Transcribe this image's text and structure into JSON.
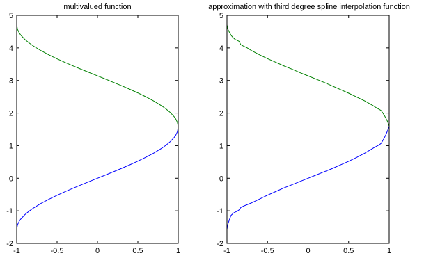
{
  "chart_data": [
    {
      "type": "line",
      "title": "multivalued function",
      "xlabel": "",
      "ylabel": "",
      "xlim": [
        -1,
        1
      ],
      "ylim": [
        -2,
        5
      ],
      "xticks": [
        -1,
        -0.5,
        0,
        0.5,
        1
      ],
      "xtick_labels": [
        "-1",
        "-0.5",
        "0",
        "0.5",
        "1"
      ],
      "yticks": [
        -2,
        -1,
        0,
        1,
        2,
        3,
        4,
        5
      ],
      "ytick_labels": [
        "-2",
        "-1",
        "0",
        "1",
        "2",
        "3",
        "4",
        "5"
      ],
      "grid": false,
      "series": [
        {
          "color": "#0000ff",
          "x": [
            -1.0,
            -0.99,
            -0.97,
            -0.95,
            -0.9,
            -0.85,
            -0.8,
            -0.7,
            -0.6,
            -0.5,
            -0.4,
            -0.3,
            -0.2,
            -0.1,
            0.0,
            0.1,
            0.2,
            0.3,
            0.4,
            0.5,
            0.6,
            0.7,
            0.8,
            0.85,
            0.9,
            0.95,
            0.97,
            0.99,
            1.0
          ],
          "y": [
            -1.571,
            -1.429,
            -1.325,
            -1.253,
            -1.12,
            -1.017,
            -0.927,
            -0.775,
            -0.644,
            -0.524,
            -0.412,
            -0.305,
            -0.201,
            -0.1,
            0.0,
            0.1,
            0.201,
            0.305,
            0.412,
            0.524,
            0.644,
            0.775,
            0.927,
            1.017,
            1.12,
            1.253,
            1.325,
            1.429,
            1.571
          ]
        },
        {
          "color": "#008000",
          "x": [
            -1.0,
            -0.99,
            -0.97,
            -0.95,
            -0.9,
            -0.85,
            -0.8,
            -0.7,
            -0.6,
            -0.5,
            -0.4,
            -0.3,
            -0.2,
            -0.1,
            0.0,
            0.1,
            0.2,
            0.3,
            0.4,
            0.5,
            0.6,
            0.7,
            0.8,
            0.85,
            0.9,
            0.95,
            0.97,
            0.99,
            1.0
          ],
          "y": [
            4.712,
            4.57,
            4.467,
            4.394,
            4.261,
            4.159,
            4.069,
            3.917,
            3.785,
            3.665,
            3.553,
            3.446,
            3.343,
            3.242,
            3.142,
            3.042,
            2.94,
            2.837,
            2.73,
            2.618,
            2.498,
            2.366,
            2.214,
            2.124,
            2.021,
            1.888,
            1.817,
            1.713,
            1.571
          ]
        }
      ]
    },
    {
      "type": "line",
      "title": "approximation with third degree spline interpolation function",
      "xlabel": "",
      "ylabel": "",
      "xlim": [
        -1,
        1
      ],
      "ylim": [
        -2,
        5
      ],
      "xticks": [
        -1,
        -0.5,
        0,
        0.5,
        1
      ],
      "xtick_labels": [
        "-1",
        "-0.5",
        "0",
        "0.5",
        "1"
      ],
      "yticks": [
        -2,
        -1,
        0,
        1,
        2,
        3,
        4,
        5
      ],
      "ytick_labels": [
        "-2",
        "-1",
        "0",
        "1",
        "2",
        "3",
        "4",
        "5"
      ],
      "grid": false,
      "series": [
        {
          "color": "#0000ff",
          "x": [
            -1.0,
            -0.99,
            -0.97,
            -0.95,
            -0.92,
            -0.9,
            -0.88,
            -0.85,
            -0.83,
            -0.8,
            -0.75,
            -0.7,
            -0.6,
            -0.5,
            -0.4,
            -0.3,
            -0.2,
            -0.1,
            0.0,
            0.1,
            0.2,
            0.3,
            0.4,
            0.5,
            0.6,
            0.7,
            0.8,
            0.85,
            0.88,
            0.9,
            0.92,
            0.94,
            0.96,
            0.98,
            1.0
          ],
          "y": [
            -1.57,
            -1.42,
            -1.27,
            -1.14,
            -1.07,
            -1.04,
            -1.02,
            -0.97,
            -0.9,
            -0.86,
            -0.81,
            -0.76,
            -0.64,
            -0.52,
            -0.41,
            -0.3,
            -0.2,
            -0.1,
            0.0,
            0.1,
            0.2,
            0.3,
            0.41,
            0.52,
            0.64,
            0.77,
            0.92,
            0.99,
            1.03,
            1.07,
            1.15,
            1.24,
            1.34,
            1.46,
            1.6
          ]
        },
        {
          "color": "#008000",
          "x": [
            -1.0,
            -0.99,
            -0.97,
            -0.95,
            -0.93,
            -0.9,
            -0.88,
            -0.85,
            -0.83,
            -0.8,
            -0.75,
            -0.7,
            -0.6,
            -0.5,
            -0.4,
            -0.3,
            -0.2,
            -0.1,
            0.0,
            0.1,
            0.2,
            0.3,
            0.4,
            0.5,
            0.6,
            0.7,
            0.8,
            0.85,
            0.88,
            0.9,
            0.92,
            0.94,
            0.96,
            0.98,
            1.0
          ],
          "y": [
            4.71,
            4.58,
            4.48,
            4.39,
            4.33,
            4.26,
            4.24,
            4.2,
            4.1,
            4.06,
            4.0,
            3.92,
            3.79,
            3.67,
            3.56,
            3.45,
            3.35,
            3.24,
            3.14,
            3.04,
            2.94,
            2.83,
            2.72,
            2.61,
            2.49,
            2.37,
            2.23,
            2.15,
            2.11,
            2.08,
            2.01,
            1.93,
            1.84,
            1.74,
            1.6
          ]
        }
      ]
    }
  ]
}
